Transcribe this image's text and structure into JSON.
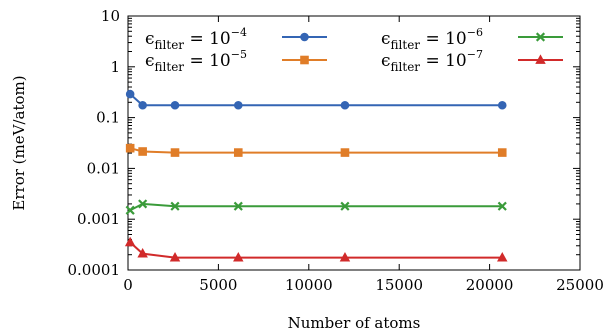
{
  "chart_data": {
    "type": "line",
    "xlabel": "Number of atoms",
    "ylabel": "Error (meV/atom)",
    "xlim": [
      0,
      25000
    ],
    "ylim": [
      0.0001,
      10
    ],
    "yscale": "log",
    "grid": false,
    "legend_placement": "top",
    "x_ticks": [
      0,
      5000,
      10000,
      15000,
      20000,
      25000
    ],
    "x_tick_labels": [
      "0",
      "5000",
      "10000",
      "15000",
      "20000",
      "25000"
    ],
    "y_ticks": [
      0.0001,
      0.001,
      0.01,
      0.1,
      1,
      10
    ],
    "y_tick_labels": [
      "0.0001",
      "0.001",
      "0.01",
      "0.1",
      "1",
      "10"
    ],
    "x": [
      120,
      810,
      2600,
      6100,
      12000,
      20700
    ],
    "series": [
      {
        "name_base": "ϵ",
        "name_sub": "filter",
        "name_eq": " = 10",
        "name_exp": "−4",
        "color": "#3465b4",
        "marker": "circle",
        "values": [
          0.29,
          0.175,
          0.175,
          0.175,
          0.175,
          0.175
        ]
      },
      {
        "name_base": "ϵ",
        "name_sub": "filter",
        "name_eq": " = 10",
        "name_exp": "−5",
        "color": "#e07d28",
        "marker": "square",
        "values": [
          0.025,
          0.0215,
          0.0205,
          0.0205,
          0.0205,
          0.0205
        ]
      },
      {
        "name_base": "ϵ",
        "name_sub": "filter",
        "name_eq": " = 10",
        "name_exp": "−6",
        "color": "#3a9b3a",
        "marker": "x",
        "values": [
          0.0015,
          0.002,
          0.0018,
          0.0018,
          0.0018,
          0.0018
        ]
      },
      {
        "name_base": "ϵ",
        "name_sub": "filter",
        "name_eq": " = 10",
        "name_exp": "−7",
        "color": "#d12a2a",
        "marker": "triangle",
        "values": [
          0.00035,
          0.00021,
          0.000175,
          0.000175,
          0.000175,
          0.000175
        ]
      }
    ]
  }
}
